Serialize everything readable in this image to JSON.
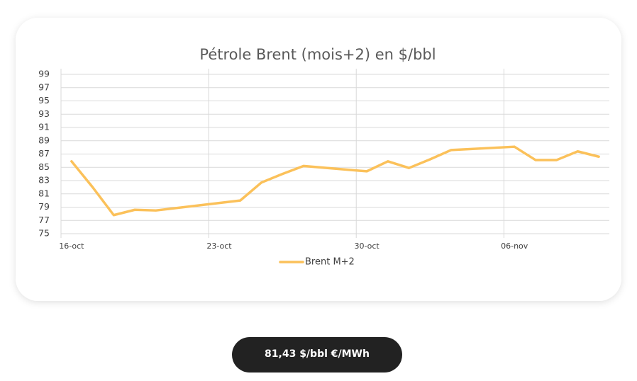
{
  "chart_data": {
    "type": "line",
    "title": "Pétrole Brent (mois+2) en $/bbl",
    "x": [
      "16-oct",
      "17-oct",
      "18-oct",
      "19-oct",
      "20-oct",
      "24-oct",
      "25-oct",
      "26-oct",
      "27-oct",
      "30-oct",
      "31-oct",
      "01-nov",
      "02-nov",
      "03-nov",
      "06-nov",
      "07-nov",
      "08-nov",
      "09-nov",
      "10-nov"
    ],
    "series": [
      {
        "name": "Brent M+2",
        "color": "#fbc15a",
        "values": [
          85.9,
          82.0,
          77.8,
          78.6,
          78.5,
          80.0,
          82.7,
          84.0,
          85.2,
          84.4,
          85.9,
          84.9,
          86.2,
          87.6,
          88.1,
          86.1,
          86.1,
          87.4,
          86.6
        ]
      }
    ],
    "xlim": [
      "16-oct",
      "11-nov"
    ],
    "xticks": [
      "16-oct",
      "23-oct",
      "30-oct",
      "06-nov"
    ],
    "ylim": [
      75,
      99
    ],
    "yticks": [
      75,
      77,
      79,
      81,
      83,
      85,
      87,
      89,
      91,
      93,
      95,
      97,
      99
    ],
    "grid": true,
    "legend": "bottom"
  },
  "button": {
    "label": "81,43 $/bbl €/MWh"
  }
}
